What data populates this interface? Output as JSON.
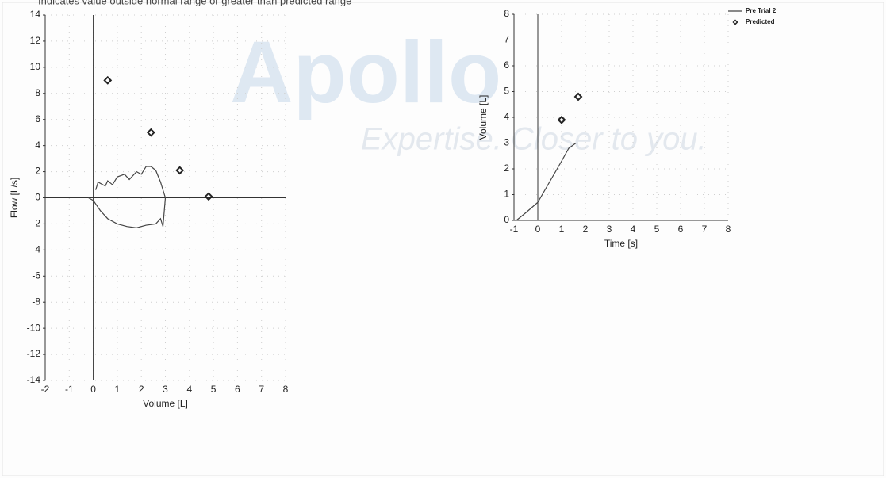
{
  "note": "Indicates value outside normal range or greater than predicted range",
  "watermark": {
    "logo": "Apollo",
    "tagline": "Expertise. Closer to you."
  },
  "chart_data": [
    {
      "type": "line",
      "xlabel": "Volume [L]",
      "ylabel": "Flow [L/s]",
      "xlim": [
        -2,
        8
      ],
      "xticks": [
        -2,
        -1,
        0,
        1,
        2,
        3,
        4,
        5,
        6,
        7,
        8
      ],
      "ylim": [
        -14,
        14
      ],
      "yticks": [
        -14,
        -12,
        -10,
        -8,
        -6,
        -4,
        -2,
        0,
        2,
        4,
        6,
        8,
        10,
        12,
        14
      ],
      "grid": true,
      "series": [
        {
          "type": "line",
          "color": "#444444",
          "x": [
            0.1,
            0.2,
            0.5,
            0.6,
            0.8,
            1.0,
            1.3,
            1.5,
            1.8,
            2.0,
            2.2,
            2.4,
            2.6,
            2.8,
            2.9,
            3.0,
            2.9,
            2.8,
            2.6,
            2.2,
            1.8,
            1.4,
            1.0,
            0.6,
            0.3,
            0.0,
            -0.2
          ],
          "values": [
            0.6,
            1.2,
            0.9,
            1.3,
            1.0,
            1.6,
            1.8,
            1.4,
            2.0,
            1.8,
            2.4,
            2.4,
            2.1,
            1.2,
            0.6,
            0.0,
            -2.2,
            -1.6,
            -2.0,
            -2.1,
            -2.3,
            -2.2,
            -2.0,
            -1.6,
            -1.0,
            -0.2,
            0.0
          ]
        },
        {
          "type": "scatter",
          "color": "#222222",
          "x": [
            0.6,
            2.4,
            3.6,
            4.8
          ],
          "values": [
            9,
            5,
            2.1,
            0.1
          ]
        }
      ]
    },
    {
      "type": "line",
      "xlabel": "Time  [s]",
      "ylabel": "Volume [L]",
      "xlim": [
        -1,
        8
      ],
      "xticks": [
        -1,
        0,
        1,
        2,
        3,
        4,
        5,
        6,
        7,
        8
      ],
      "ylim": [
        0,
        8
      ],
      "yticks": [
        0,
        1,
        2,
        3,
        4,
        5,
        6,
        7,
        8
      ],
      "grid": true,
      "legend": "upper right",
      "series": [
        {
          "name": "Pre Trial 2",
          "type": "line",
          "color": "#444444",
          "x": [
            -0.9,
            -0.5,
            0.0,
            0.5,
            1.0,
            1.3,
            1.6
          ],
          "values": [
            0.0,
            0.3,
            0.7,
            1.5,
            2.3,
            2.8,
            3.0
          ]
        },
        {
          "name": "Predicted",
          "type": "scatter",
          "color": "#222222",
          "x": [
            1.0,
            1.7
          ],
          "values": [
            3.9,
            4.8
          ]
        }
      ]
    }
  ]
}
